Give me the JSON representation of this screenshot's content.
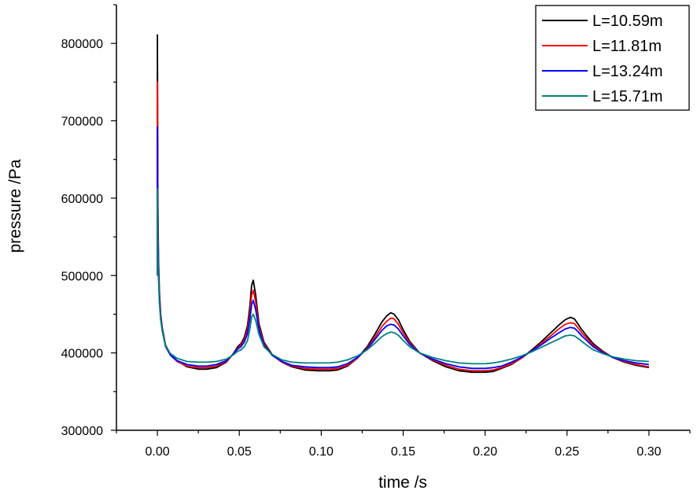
{
  "chart_data": {
    "type": "line",
    "title": "",
    "xlabel": "time /s",
    "ylabel": "pressure /Pa",
    "xlim": [
      -0.025,
      0.325
    ],
    "ylim": [
      300000,
      850000
    ],
    "xticks": [
      0.0,
      0.05,
      0.1,
      0.15,
      0.2,
      0.25,
      0.3
    ],
    "xtick_labels": [
      "0.00",
      "0.05",
      "0.10",
      "0.15",
      "0.20",
      "0.25",
      "0.30"
    ],
    "yticks": [
      300000,
      400000,
      500000,
      600000,
      700000,
      800000
    ],
    "ytick_labels": [
      "300000",
      "400000",
      "500000",
      "600000",
      "700000",
      "800000"
    ],
    "legend_position": "top-right",
    "series": [
      {
        "name": "L=10.59m",
        "color": "#000000",
        "x": [
          0.0,
          0.0,
          0.0003,
          0.0007,
          0.0012,
          0.002,
          0.003,
          0.005,
          0.008,
          0.012,
          0.018,
          0.025,
          0.03,
          0.036,
          0.042,
          0.046,
          0.049,
          0.051,
          0.053,
          0.055,
          0.0565,
          0.0575,
          0.0585,
          0.06,
          0.062,
          0.065,
          0.07,
          0.076,
          0.082,
          0.09,
          0.098,
          0.105,
          0.11,
          0.116,
          0.122,
          0.128,
          0.133,
          0.137,
          0.14,
          0.1425,
          0.1445,
          0.147,
          0.15,
          0.154,
          0.16,
          0.168,
          0.176,
          0.184,
          0.192,
          0.2,
          0.205,
          0.21,
          0.216,
          0.222,
          0.228,
          0.234,
          0.24,
          0.245,
          0.249,
          0.252,
          0.2545,
          0.2565,
          0.259,
          0.262,
          0.266,
          0.272,
          0.278,
          0.285,
          0.292,
          0.3
        ],
        "y": [
          500000,
          811000,
          590000,
          520000,
          480000,
          450000,
          432000,
          410000,
          398000,
          390000,
          382000,
          379000,
          379000,
          381000,
          388000,
          398000,
          408000,
          412000,
          420000,
          435000,
          462000,
          487000,
          494000,
          475000,
          438000,
          414000,
          398000,
          388000,
          382000,
          378000,
          377000,
          377000,
          378000,
          383000,
          393000,
          408000,
          425000,
          440000,
          448000,
          452000,
          450000,
          443000,
          430000,
          415000,
          400000,
          390000,
          382000,
          377000,
          375000,
          375000,
          376000,
          380000,
          385000,
          393000,
          403000,
          414000,
          426000,
          436000,
          443000,
          446000,
          444000,
          438000,
          430000,
          422000,
          412000,
          402000,
          394000,
          388000,
          384000,
          381000
        ]
      },
      {
        "name": "L=11.81m",
        "color": "#ff0000",
        "x": [
          0.0,
          0.0,
          0.0003,
          0.0007,
          0.0012,
          0.002,
          0.003,
          0.005,
          0.008,
          0.012,
          0.018,
          0.025,
          0.03,
          0.036,
          0.042,
          0.046,
          0.049,
          0.051,
          0.053,
          0.055,
          0.0565,
          0.0575,
          0.0585,
          0.06,
          0.062,
          0.065,
          0.07,
          0.076,
          0.082,
          0.09,
          0.098,
          0.105,
          0.11,
          0.116,
          0.122,
          0.128,
          0.133,
          0.137,
          0.14,
          0.1425,
          0.1445,
          0.147,
          0.15,
          0.154,
          0.16,
          0.168,
          0.176,
          0.184,
          0.192,
          0.2,
          0.205,
          0.21,
          0.216,
          0.222,
          0.228,
          0.234,
          0.24,
          0.245,
          0.249,
          0.252,
          0.2545,
          0.2565,
          0.259,
          0.262,
          0.266,
          0.272,
          0.278,
          0.285,
          0.292,
          0.3
        ],
        "y": [
          500000,
          750000,
          570000,
          510000,
          475000,
          448000,
          430000,
          409000,
          397000,
          389000,
          383000,
          381000,
          381000,
          383000,
          389000,
          398000,
          406000,
          410000,
          417000,
          430000,
          453000,
          474000,
          481000,
          466000,
          434000,
          412000,
          397000,
          388000,
          383000,
          380000,
          379000,
          379000,
          380000,
          384000,
          393000,
          406000,
          421000,
          434000,
          441000,
          445000,
          444000,
          437000,
          426000,
          413000,
          400000,
          391000,
          384000,
          379000,
          377000,
          377000,
          378000,
          381000,
          386000,
          393000,
          402000,
          412000,
          422000,
          431000,
          437000,
          439000,
          438000,
          433000,
          426000,
          419000,
          410000,
          401000,
          394000,
          389000,
          385000,
          382000
        ]
      },
      {
        "name": "L=13.24m",
        "color": "#0000ff",
        "x": [
          0.0,
          0.0,
          0.0003,
          0.0007,
          0.0012,
          0.002,
          0.003,
          0.005,
          0.008,
          0.012,
          0.018,
          0.025,
          0.03,
          0.036,
          0.042,
          0.046,
          0.049,
          0.051,
          0.053,
          0.055,
          0.0565,
          0.0575,
          0.0585,
          0.06,
          0.062,
          0.065,
          0.07,
          0.076,
          0.082,
          0.09,
          0.098,
          0.105,
          0.11,
          0.116,
          0.122,
          0.128,
          0.133,
          0.137,
          0.14,
          0.1425,
          0.1445,
          0.147,
          0.15,
          0.154,
          0.16,
          0.168,
          0.176,
          0.184,
          0.192,
          0.2,
          0.205,
          0.21,
          0.216,
          0.222,
          0.228,
          0.234,
          0.24,
          0.245,
          0.249,
          0.252,
          0.2545,
          0.2565,
          0.259,
          0.262,
          0.266,
          0.272,
          0.278,
          0.285,
          0.292,
          0.3
        ],
        "y": [
          500000,
          692000,
          555000,
          503000,
          470000,
          446000,
          429000,
          408000,
          397000,
          390000,
          385000,
          383000,
          383000,
          385000,
          390000,
          398000,
          405000,
          408000,
          414000,
          425000,
          445000,
          462000,
          468000,
          456000,
          430000,
          410000,
          397000,
          389000,
          384000,
          382000,
          381000,
          381000,
          382000,
          386000,
          394000,
          405000,
          418000,
          429000,
          435000,
          437000,
          436000,
          431000,
          422000,
          411000,
          400000,
          392000,
          386000,
          382000,
          380000,
          380000,
          381000,
          383000,
          388000,
          394000,
          402000,
          410000,
          419000,
          426000,
          431000,
          433000,
          432000,
          428000,
          422000,
          416000,
          408000,
          400000,
          394000,
          390000,
          387000,
          385000
        ]
      },
      {
        "name": "L=15.71m",
        "color": "#008080",
        "x": [
          0.0,
          0.0,
          0.0003,
          0.0007,
          0.0012,
          0.002,
          0.003,
          0.005,
          0.008,
          0.012,
          0.018,
          0.025,
          0.03,
          0.036,
          0.042,
          0.046,
          0.049,
          0.051,
          0.053,
          0.055,
          0.0565,
          0.0575,
          0.0585,
          0.06,
          0.062,
          0.065,
          0.07,
          0.076,
          0.082,
          0.09,
          0.098,
          0.105,
          0.11,
          0.116,
          0.122,
          0.128,
          0.133,
          0.137,
          0.14,
          0.1425,
          0.1445,
          0.147,
          0.15,
          0.154,
          0.16,
          0.168,
          0.176,
          0.184,
          0.192,
          0.2,
          0.205,
          0.21,
          0.216,
          0.222,
          0.228,
          0.234,
          0.24,
          0.245,
          0.249,
          0.252,
          0.2545,
          0.2565,
          0.259,
          0.262,
          0.266,
          0.272,
          0.278,
          0.285,
          0.292,
          0.3
        ],
        "y": [
          500000,
          612000,
          530000,
          495000,
          465000,
          443000,
          428000,
          409000,
          399000,
          393000,
          389000,
          388000,
          388000,
          389000,
          392000,
          397000,
          402000,
          404000,
          408000,
          416000,
          432000,
          446000,
          450000,
          442000,
          424000,
          408000,
          398000,
          391000,
          388000,
          387000,
          387000,
          387000,
          388000,
          391000,
          396000,
          404000,
          413000,
          421000,
          425000,
          427000,
          426000,
          423000,
          416000,
          408000,
          400000,
          394000,
          390000,
          387000,
          386000,
          386000,
          387000,
          389000,
          392000,
          396000,
          401000,
          407000,
          413000,
          418000,
          422000,
          423000,
          422000,
          419000,
          415000,
          410000,
          404000,
          399000,
          395000,
          392000,
          390000,
          389000
        ]
      }
    ]
  }
}
